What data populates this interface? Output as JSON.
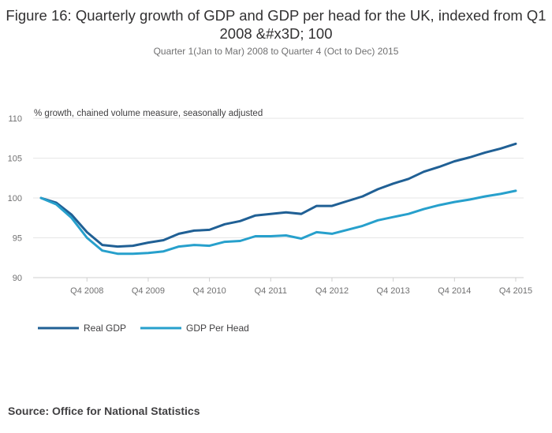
{
  "chart_data": {
    "type": "line",
    "title": "Figure 16: Quarterly growth of GDP and GDP per head for the UK, indexed from Q1 2008 &#x3D; 100",
    "subtitle": "Quarter 1(Jan to Mar) 2008 to Quarter 4 (Oct to Dec) 2015",
    "ylabel": "% growth, chained volume measure, seasonally adjusted",
    "ylim": [
      90,
      110
    ],
    "yticks": [
      "90",
      "95",
      "100",
      "105",
      "110"
    ],
    "xticks": [
      "Q4 2008",
      "Q4 2009",
      "Q4 2010",
      "Q4 2011",
      "Q4 2012",
      "Q4 2013",
      "Q4 2014",
      "Q4 2015"
    ],
    "grid": "horizontal",
    "legend_position": "bottom-left",
    "x": [
      "Q1 2008",
      "Q2 2008",
      "Q3 2008",
      "Q4 2008",
      "Q1 2009",
      "Q2 2009",
      "Q3 2009",
      "Q4 2009",
      "Q1 2010",
      "Q2 2010",
      "Q3 2010",
      "Q4 2010",
      "Q1 2011",
      "Q2 2011",
      "Q3 2011",
      "Q4 2011",
      "Q1 2012",
      "Q2 2012",
      "Q3 2012",
      "Q4 2012",
      "Q1 2013",
      "Q2 2013",
      "Q3 2013",
      "Q4 2013",
      "Q1 2014",
      "Q2 2014",
      "Q3 2014",
      "Q4 2014",
      "Q1 2015",
      "Q2 2015",
      "Q3 2015",
      "Q4 2015"
    ],
    "series": [
      {
        "name": "Real GDP",
        "color": "#206095",
        "values": [
          100.0,
          99.4,
          97.9,
          95.7,
          94.1,
          93.9,
          94.0,
          94.4,
          94.7,
          95.5,
          95.9,
          96.0,
          96.7,
          97.1,
          97.8,
          98.0,
          98.2,
          98.0,
          99.0,
          99.0,
          99.6,
          100.2,
          101.1,
          101.8,
          102.4,
          103.3,
          103.9,
          104.6,
          105.1,
          105.7,
          106.2,
          106.8
        ]
      },
      {
        "name": "GDP Per Head",
        "color": "#27A0CC",
        "values": [
          100.0,
          99.2,
          97.5,
          95.0,
          93.4,
          93.0,
          93.0,
          93.1,
          93.3,
          93.9,
          94.1,
          94.0,
          94.5,
          94.6,
          95.2,
          95.2,
          95.3,
          94.9,
          95.7,
          95.5,
          96.0,
          96.5,
          97.2,
          97.6,
          98.0,
          98.6,
          99.1,
          99.5,
          99.8,
          100.2,
          100.5,
          100.9
        ]
      }
    ]
  },
  "source": "Source: Office for National Statistics"
}
